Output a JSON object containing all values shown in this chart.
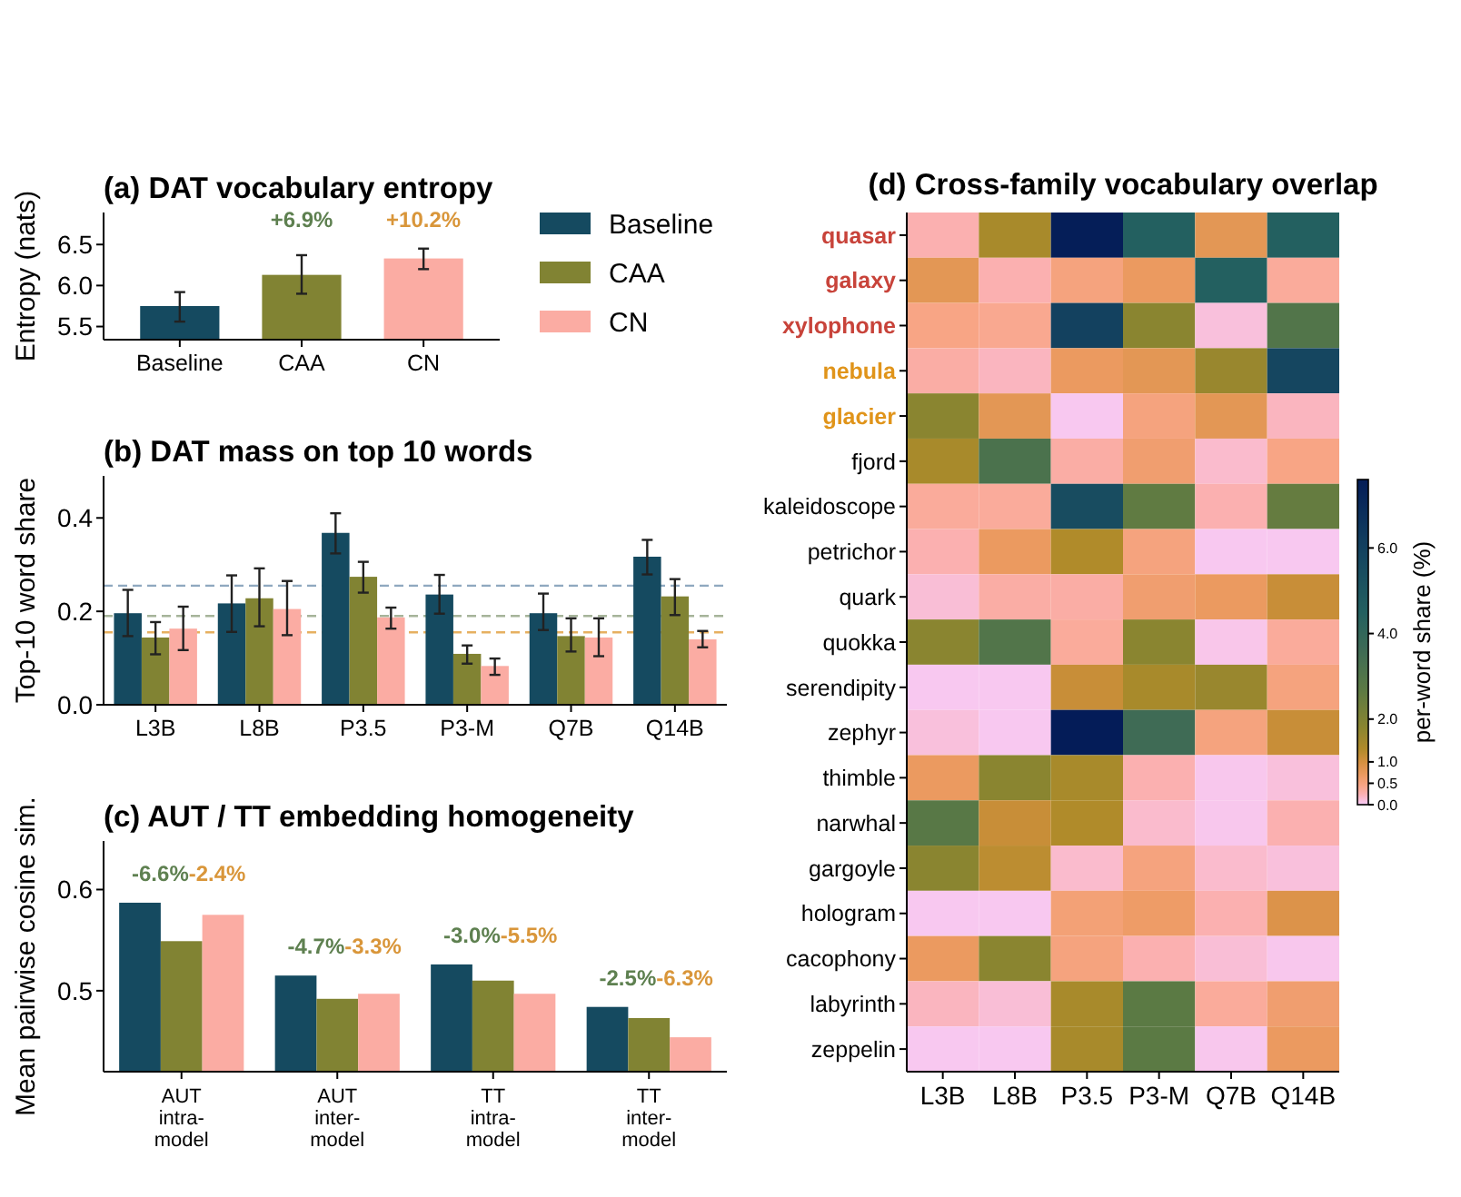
{
  "chart_data": [
    {
      "type": "bar",
      "title": "(a) DAT vocabulary entropy",
      "ylabel": "Entropy (nats)",
      "categories": [
        "Baseline",
        "CAA",
        "CN"
      ],
      "values": [
        5.75,
        6.13,
        6.33
      ],
      "colors": [
        "#154a60",
        "#818333",
        "#fbaca3"
      ],
      "errors": [
        [
          5.56,
          5.92
        ],
        [
          5.9,
          6.37
        ],
        [
          6.2,
          6.45
        ]
      ],
      "ylim": [
        5.34,
        6.89
      ],
      "yticks": [
        5.5,
        {
          "value": 6,
          "label": "6.0"
        },
        6.5
      ],
      "annotations": [
        "+6.9%",
        "+10.2%"
      ]
    },
    {
      "type": "bar",
      "title": "(b) DAT mass on top 10 words",
      "ylabel": "Top-10 word share",
      "categories": [
        "L3B",
        "L8B",
        "P3.5",
        "P3-M",
        "Q7B",
        "Q14B"
      ],
      "legend": "top right",
      "ylim": [
        0,
        0.49
      ],
      "yticks": [
        {
          "value": 0,
          "label": "0.0"
        },
        0.2,
        0.4
      ],
      "series": [
        {
          "name": "Baseline",
          "color": "#154a60",
          "values": [
            0.196,
            0.217,
            0.368,
            0.236,
            0.196,
            0.317
          ],
          "errors": [
            [
              0.147,
              0.246
            ],
            [
              0.156,
              0.277
            ],
            [
              0.324,
              0.41
            ],
            [
              0.195,
              0.278
            ],
            [
              0.16,
              0.238
            ],
            [
              0.279,
              0.353
            ]
          ]
        },
        {
          "name": "CAA",
          "color": "#818333",
          "values": [
            0.144,
            0.228,
            0.274,
            0.109,
            0.147,
            0.232
          ],
          "errors": [
            [
              0.108,
              0.177
            ],
            [
              0.168,
              0.292
            ],
            [
              0.24,
              0.306
            ],
            [
              0.088,
              0.127
            ],
            [
              0.114,
              0.185
            ],
            [
              0.192,
              0.269
            ]
          ]
        },
        {
          "name": "CN",
          "color": "#fbaca3",
          "values": [
            0.163,
            0.205,
            0.187,
            0.083,
            0.144,
            0.14
          ],
          "errors": [
            [
              0.117,
              0.21
            ],
            [
              0.149,
              0.265
            ],
            [
              0.163,
              0.208
            ],
            [
              0.064,
              0.099
            ],
            [
              0.104,
              0.185
            ],
            [
              0.123,
              0.158
            ]
          ]
        }
      ],
      "ref_lines": [
        {
          "axis": "y",
          "value": 0.255,
          "color": "#8fa8bf",
          "line_style": "dashed"
        },
        {
          "axis": "y",
          "value": 0.19,
          "color": "#a6b49a",
          "line_style": "dashed"
        },
        {
          "axis": "y",
          "value": 0.155,
          "color": "#e6b060",
          "line_style": "dashed"
        }
      ]
    },
    {
      "type": "bar",
      "title": "(c) AUT / TT embedding homogeneity",
      "ylabel": "Mean pairwise cosine sim.",
      "categories": [
        "AUT\nintra-\nmodel",
        "AUT\ninter-\nmodel",
        "TT\nintra-\nmodel",
        "TT\ninter-\nmodel"
      ],
      "ylim": [
        0.42,
        0.648
      ],
      "yticks": [
        0.5,
        0.6
      ],
      "series": [
        {
          "color": "#154a60",
          "values": [
            0.587,
            0.515,
            0.526,
            0.484
          ]
        },
        {
          "color": "#818333",
          "values": [
            0.549,
            0.492,
            0.51,
            0.473
          ]
        },
        {
          "color": "#fbaca3",
          "values": [
            0.575,
            0.497,
            0.497,
            0.454
          ]
        }
      ],
      "annotations": [
        "-6.6%",
        "-2.4%",
        "-4.7%",
        "-3.3%",
        "-3.0%",
        "-5.5%",
        "-2.5%",
        "-6.3%"
      ]
    },
    {
      "type": "heatmap",
      "title": "(d) Cross-family vocabulary overlap",
      "clabel": "per-word share (%)",
      "categories": [
        "L3B",
        "L8B",
        "P3.5",
        "P3-M",
        "Q7B",
        "Q14B"
      ],
      "y_categories": [
        "quasar",
        "galaxy",
        "xylophone",
        "nebula",
        "glacier",
        "fjord",
        "kaleidoscope",
        "petrichor",
        "quark",
        "quokka",
        "serendipity",
        "zephyr",
        "thimble",
        "narwhal",
        "gargoyle",
        "hologram",
        "cacophony",
        "labyrinth",
        "zeppelin"
      ],
      "cells": [
        [
          0.25,
          1.4,
          7.5,
          4.5,
          0.8,
          4.5
        ],
        [
          0.8,
          0.25,
          0.5,
          0.7,
          4.5,
          0.35
        ],
        [
          0.45,
          0.4,
          6.0,
          1.8,
          0.1,
          3.0
        ],
        [
          0.3,
          0.2,
          0.7,
          0.8,
          1.6,
          5.8
        ],
        [
          1.8,
          0.8,
          0.03,
          0.5,
          0.8,
          0.2
        ],
        [
          1.4,
          3.2,
          0.3,
          0.6,
          0.15,
          0.45
        ],
        [
          0.35,
          0.35,
          5.5,
          2.6,
          0.25,
          2.5
        ],
        [
          0.25,
          0.7,
          1.3,
          0.5,
          0.03,
          0.03
        ],
        [
          0.12,
          0.3,
          0.3,
          0.6,
          0.7,
          1.1
        ],
        [
          1.8,
          3.0,
          0.35,
          1.8,
          0.05,
          0.35
        ],
        [
          0.03,
          0.03,
          1.1,
          1.4,
          1.6,
          0.5
        ],
        [
          0.1,
          0.03,
          7.6,
          3.6,
          0.5,
          1.1
        ],
        [
          0.7,
          1.8,
          1.4,
          0.25,
          0.04,
          0.1
        ],
        [
          2.8,
          1.1,
          1.3,
          0.15,
          0.04,
          0.25
        ],
        [
          1.8,
          1.2,
          0.15,
          0.5,
          0.15,
          0.1
        ],
        [
          0.03,
          0.03,
          0.55,
          0.65,
          0.25,
          0.9
        ],
        [
          0.7,
          1.8,
          0.5,
          0.25,
          0.12,
          0.04
        ],
        [
          0.2,
          0.12,
          1.4,
          2.7,
          0.35,
          0.6
        ],
        [
          0.03,
          0.03,
          1.4,
          2.7,
          0.04,
          0.7
        ]
      ],
      "clim": [
        0,
        7.6
      ],
      "cticks": [
        {
          "value": 0,
          "label": "0.0"
        },
        {
          "value": 0.5,
          "label": "0.5"
        },
        {
          "value": 1,
          "label": "1.0"
        },
        {
          "value": 2,
          "label": "2.0"
        },
        {
          "value": 4,
          "label": "4.0"
        },
        {
          "value": 6,
          "label": "6.0"
        }
      ]
    }
  ]
}
